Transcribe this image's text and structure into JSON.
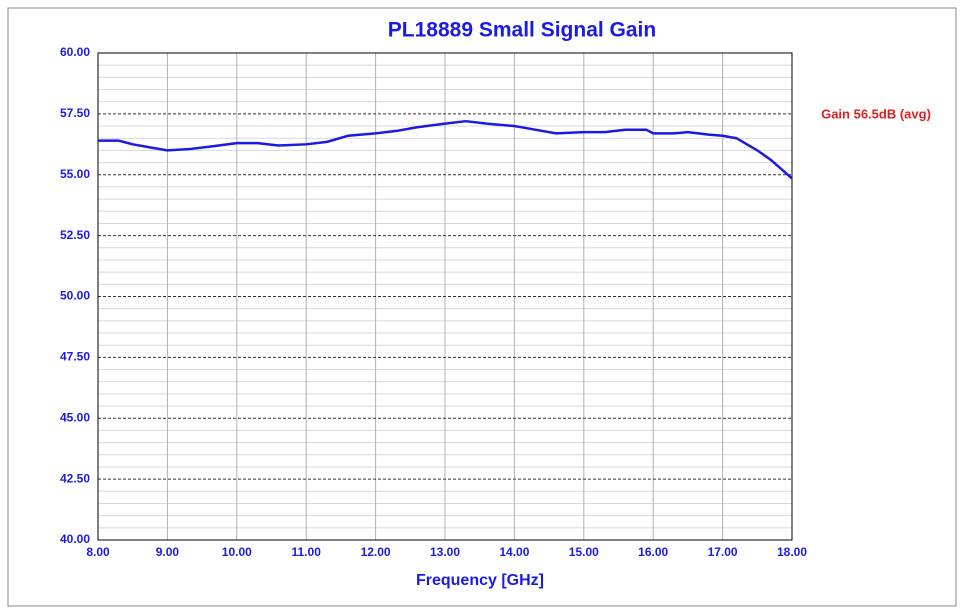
{
  "chart_data": {
    "type": "line",
    "title": "PL18889 Small Signal Gain",
    "x_label": "Frequency [GHz]",
    "annotation": "Gain 56.5dB (avg)",
    "x": [
      8.0,
      8.3,
      8.5,
      8.8,
      9.0,
      9.3,
      9.6,
      10.0,
      10.3,
      10.6,
      11.0,
      11.3,
      11.6,
      12.0,
      12.3,
      12.6,
      13.0,
      13.3,
      13.6,
      14.0,
      14.3,
      14.6,
      15.0,
      15.3,
      15.6,
      15.9,
      16.0,
      16.3,
      16.5,
      16.8,
      17.0,
      17.2,
      17.5,
      17.7,
      17.9,
      18.0
    ],
    "series": [
      {
        "name": "Gain",
        "color": "#1a1ae6",
        "values": [
          56.4,
          56.4,
          56.25,
          56.1,
          56.0,
          56.05,
          56.15,
          56.3,
          56.3,
          56.2,
          56.25,
          56.35,
          56.6,
          56.7,
          56.8,
          56.95,
          57.1,
          57.2,
          57.1,
          57.0,
          56.85,
          56.7,
          56.75,
          56.75,
          56.85,
          56.85,
          56.7,
          56.7,
          56.75,
          56.65,
          56.6,
          56.5,
          56.0,
          55.6,
          55.1,
          54.85
        ]
      }
    ],
    "xlim": [
      8,
      18
    ],
    "xticks": [
      {
        "value": 8,
        "label": "8.00"
      },
      {
        "value": 9,
        "label": "9.00"
      },
      {
        "value": 10,
        "label": "10.00"
      },
      {
        "value": 11,
        "label": "11.00"
      },
      {
        "value": 12,
        "label": "12.00"
      },
      {
        "value": 13,
        "label": "13.00"
      },
      {
        "value": 14,
        "label": "14.00"
      },
      {
        "value": 15,
        "label": "15.00"
      },
      {
        "value": 16,
        "label": "16.00"
      },
      {
        "value": 17,
        "label": "17.00"
      },
      {
        "value": 18,
        "label": "18.00"
      }
    ],
    "ylim": [
      40,
      60
    ],
    "yticks": [
      {
        "value": 40,
        "label": "40.00"
      },
      {
        "value": 42.5,
        "label": "42.50"
      },
      {
        "value": 45,
        "label": "45.00"
      },
      {
        "value": 47.5,
        "label": "47.50"
      },
      {
        "value": 50,
        "label": "50.00"
      },
      {
        "value": 52.5,
        "label": "52.50"
      },
      {
        "value": 55,
        "label": "55.00"
      },
      {
        "value": 57.5,
        "label": "57.50"
      },
      {
        "value": 60,
        "label": "60.00"
      }
    ],
    "grid": true
  }
}
